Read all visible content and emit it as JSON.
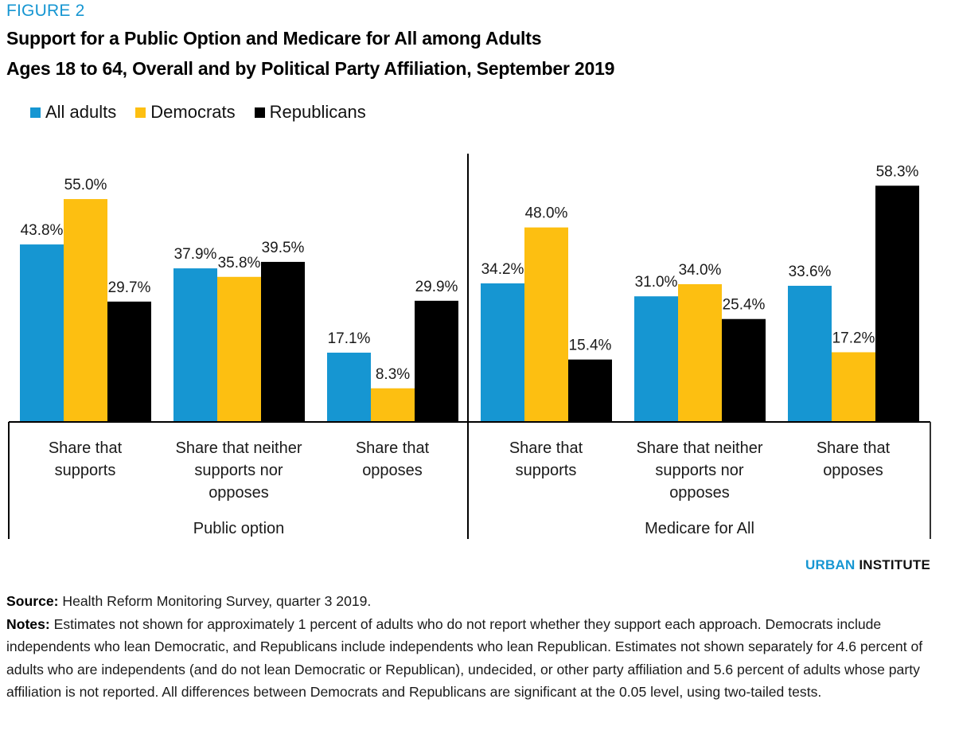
{
  "figure_label": "FIGURE 2",
  "title_line1": "Support for a Public Option and Medicare for All among Adults",
  "title_line2": "Ages 18 to 64, Overall and by Political Party Affiliation, September 2019",
  "brand": {
    "part1": "URBAN",
    "part2": "INSTITUTE"
  },
  "source_label": "Source:",
  "source_text": " Health Reform Monitoring Survey, quarter 3 2019.",
  "notes_label": "Notes:",
  "notes_text": " Estimates not shown for approximately 1 percent of adults who do not report whether they support each approach. Democrats include independents who lean Democratic, and Republicans include independents who lean Republican. Estimates not shown separately for 4.6 percent of adults who are independents (and do not lean Democratic or Republican), undecided, or other party affiliation and 5.6 percent of adults whose party affiliation is not reported. All differences between Democrats and Republicans are significant at the 0.05 level, using two-tailed tests.",
  "chart_data": {
    "type": "bar",
    "title": "Support for a Public Option and Medicare for All among Adults Ages 18 to 64, Overall and by Political Party Affiliation, September 2019",
    "xlabel": "",
    "ylabel": "",
    "ylim": [
      0,
      60
    ],
    "grid": false,
    "legend_position": "top-left",
    "groups": [
      {
        "label": "Public option",
        "categories": [
          [
            "Share that",
            "supports"
          ],
          [
            "Share that neither",
            "supports nor",
            "opposes"
          ],
          [
            "Share that",
            "opposes"
          ]
        ]
      },
      {
        "label": "Medicare for All",
        "categories": [
          [
            "Share that",
            "supports"
          ],
          [
            "Share that neither",
            "supports nor",
            "opposes"
          ],
          [
            "Share that",
            "opposes"
          ]
        ]
      }
    ],
    "categories": [
      "Public option – Share that supports",
      "Public option – Share that neither supports nor opposes",
      "Public option – Share that opposes",
      "Medicare for All – Share that supports",
      "Medicare for All – Share that neither supports nor opposes",
      "Medicare for All – Share that opposes"
    ],
    "series": [
      {
        "name": "All adults",
        "color": "#1696d2",
        "values": [
          43.8,
          37.9,
          17.1,
          34.2,
          31.0,
          33.6
        ],
        "labels": [
          "43.8%",
          "37.9%",
          "17.1%",
          "34.2%",
          "31.0%",
          "33.6%"
        ]
      },
      {
        "name": "Democrats",
        "color": "#fdbf11",
        "values": [
          55.0,
          35.8,
          8.3,
          48.0,
          34.0,
          17.2
        ],
        "labels": [
          "55.0%",
          "35.8%",
          "8.3%",
          "48.0%",
          "34.0%",
          "17.2%"
        ]
      },
      {
        "name": "Republicans",
        "color": "#000000",
        "values": [
          29.7,
          39.5,
          29.9,
          15.4,
          25.4,
          58.3
        ],
        "labels": [
          "29.7%",
          "39.5%",
          "29.9%",
          "15.4%",
          "25.4%",
          "58.3%"
        ]
      }
    ]
  }
}
